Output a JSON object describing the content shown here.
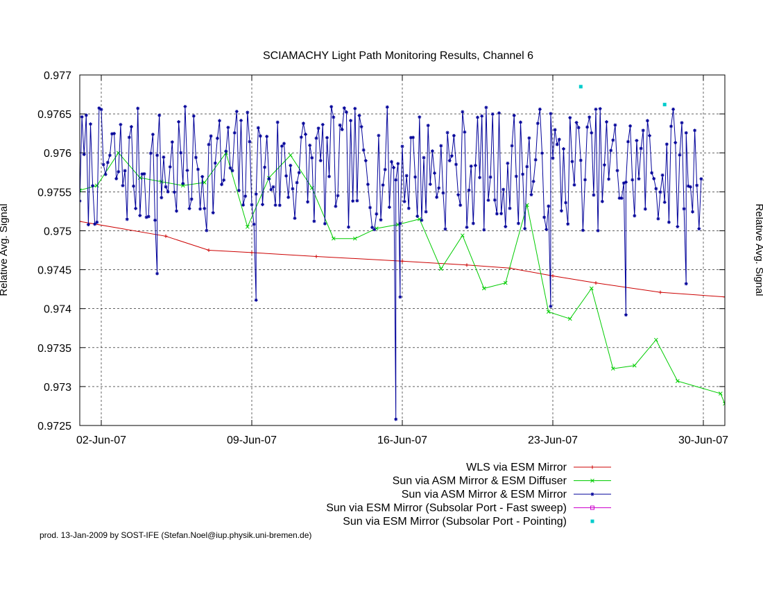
{
  "chart_data": {
    "type": "line",
    "title": "SCIAMACHY Light Path Monitoring Results, Channel 6",
    "ylabel": "Relative Avg. Signal",
    "ylabel_right": "Relative Avg. Signal",
    "x_range": [
      "2007-06-01",
      "2007-07-01"
    ],
    "ylim": [
      0.9725,
      0.977
    ],
    "x_ticks": [
      {
        "label": "02-Jun-07",
        "date": "2007-06-02"
      },
      {
        "label": "09-Jun-07",
        "date": "2007-06-09"
      },
      {
        "label": "16-Jun-07",
        "date": "2007-06-16"
      },
      {
        "label": "23-Jun-07",
        "date": "2007-06-23"
      },
      {
        "label": "30-Jun-07",
        "date": "2007-06-30"
      }
    ],
    "y_ticks": [
      "0.9725",
      "0.973",
      "0.9735",
      "0.974",
      "0.9745",
      "0.975",
      "0.9755",
      "0.976",
      "0.9765",
      "0.977"
    ],
    "grid": true,
    "legend_position": "bottom-right",
    "series": [
      {
        "name": "WLS via ESM Mirror",
        "color": "#cc0000",
        "marker": "plus",
        "points": [
          [
            "2007-06-01",
            0.97512
          ],
          [
            "2007-06-05",
            0.97493
          ],
          [
            "2007-06-07",
            0.97475
          ],
          [
            "2007-06-09",
            0.97472
          ],
          [
            "2007-06-12",
            0.97467
          ],
          [
            "2007-06-16",
            0.97461
          ],
          [
            "2007-06-19",
            0.97456
          ],
          [
            "2007-06-21",
            0.97452
          ],
          [
            "2007-06-23",
            0.97442
          ],
          [
            "2007-06-25",
            0.97433
          ],
          [
            "2007-06-28",
            0.97421
          ],
          [
            "2007-07-01",
            0.97415
          ]
        ]
      },
      {
        "name": "Sun via ASM Mirror & ESM Diffuser",
        "color": "#00cc00",
        "marker": "cross",
        "points": [
          [
            "2007-06-01",
            0.97552
          ],
          [
            "2007-06-01.8",
            0.97558
          ],
          [
            "2007-06-02.8",
            0.976
          ],
          [
            "2007-06-03.8",
            0.97568
          ],
          [
            "2007-06-04.8",
            0.97563
          ],
          [
            "2007-06-05.8",
            0.97558
          ],
          [
            "2007-06-06.8",
            0.97562
          ],
          [
            "2007-06-07.8",
            0.976
          ],
          [
            "2007-06-08.8",
            0.97505
          ],
          [
            "2007-06-09.8",
            0.97568
          ],
          [
            "2007-06-10.8",
            0.97597
          ],
          [
            "2007-06-11.8",
            0.97555
          ],
          [
            "2007-06-12.8",
            0.9749
          ],
          [
            "2007-06-13.8",
            0.9749
          ],
          [
            "2007-06-14.8",
            0.97503
          ],
          [
            "2007-06-15.8",
            0.97508
          ],
          [
            "2007-06-16.8",
            0.97515
          ],
          [
            "2007-06-17.8",
            0.97451
          ],
          [
            "2007-06-18.8",
            0.97494
          ],
          [
            "2007-06-19.8",
            0.97426
          ],
          [
            "2007-06-20.8",
            0.97433
          ],
          [
            "2007-06-21.8",
            0.97533
          ],
          [
            "2007-06-22.8",
            0.97396
          ],
          [
            "2007-06-23.8",
            0.97387
          ],
          [
            "2007-06-24.8",
            0.97426
          ],
          [
            "2007-06-25.8",
            0.97323
          ],
          [
            "2007-06-26.8",
            0.97327
          ],
          [
            "2007-06-27.8",
            0.9736
          ],
          [
            "2007-06-28.8",
            0.97307
          ],
          [
            "2007-06-30.8",
            0.97291
          ],
          [
            "2007-07-01",
            0.97278
          ]
        ]
      },
      {
        "name": "Sun via ASM Mirror & ESM Mirror",
        "color": "#000099",
        "marker": "star",
        "generator": {
          "start": "2007-06-01",
          "end": "2007-06-30",
          "spacing_days": 0.1,
          "mean": 0.9758,
          "amplitude": 0.0008,
          "seed": 7
        },
        "points": [
          [
            "2007-06-04.6",
            0.97445
          ],
          [
            "2007-06-09.2",
            0.97411
          ],
          [
            "2007-06-15.7",
            0.97258
          ],
          [
            "2007-06-15.9",
            0.97415
          ],
          [
            "2007-06-22.9",
            0.97403
          ],
          [
            "2007-06-26.4",
            0.97392
          ],
          [
            "2007-06-29.2",
            0.97432
          ]
        ]
      },
      {
        "name": "Sun via ESM Mirror (Subsolar Port - Fast sweep)",
        "color": "#cc00cc",
        "marker": "square",
        "points": []
      },
      {
        "name": "Sun via ESM Mirror (Subsolar Port - Pointing)",
        "color": "#00cccc",
        "marker": "filled-square",
        "points": [
          [
            "2007-06-24.3",
            0.97685
          ],
          [
            "2007-06-28.2",
            0.97662
          ]
        ]
      }
    ]
  },
  "footer": {
    "credit": "prod. 13-Jan-2009 by SOST-IFE (Stefan.Noel@iup.physik.uni-bremen.de)"
  }
}
